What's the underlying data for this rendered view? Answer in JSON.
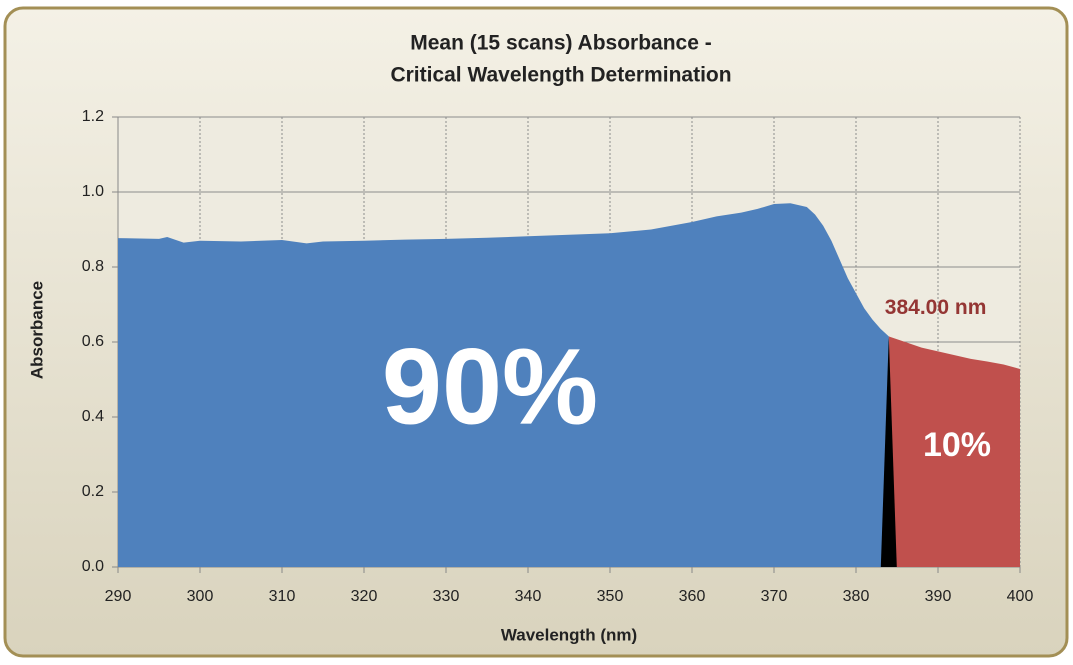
{
  "chart_data": {
    "type": "area",
    "title": [
      "Mean (15 scans) Absorbance -",
      "Critical Wavelength Determination"
    ],
    "x_label": "Wavelength (nm)",
    "y_label": "Absorbance",
    "x": [
      290,
      295,
      296,
      298,
      300,
      305,
      310,
      313,
      315,
      320,
      325,
      330,
      335,
      340,
      345,
      350,
      355,
      360,
      363,
      366,
      368,
      370,
      372,
      374,
      375,
      376,
      377,
      378,
      379,
      380,
      381,
      382,
      383,
      384,
      386,
      388,
      390,
      392,
      394,
      396,
      398,
      400
    ],
    "series": [
      {
        "color": "#4f81bd",
        "values": [
          0.877,
          0.875,
          0.88,
          0.865,
          0.87,
          0.868,
          0.872,
          0.863,
          0.868,
          0.87,
          0.873,
          0.875,
          0.878,
          0.882,
          0.886,
          0.89,
          0.9,
          0.92,
          0.935,
          0.945,
          0.955,
          0.968,
          0.97,
          0.96,
          0.94,
          0.91,
          0.87,
          0.82,
          0.77,
          0.73,
          0.69,
          0.66,
          0.635,
          0.615,
          null,
          null,
          null,
          null,
          null,
          null,
          null,
          null
        ]
      },
      {
        "color": "#c0504d",
        "values": [
          null,
          null,
          null,
          null,
          null,
          null,
          null,
          null,
          null,
          null,
          null,
          null,
          null,
          null,
          null,
          null,
          null,
          null,
          null,
          null,
          null,
          null,
          null,
          null,
          null,
          null,
          null,
          null,
          null,
          null,
          null,
          null,
          null,
          0.615,
          0.6,
          0.585,
          0.575,
          0.565,
          0.555,
          0.548,
          0.54,
          0.528
        ]
      }
    ],
    "critical_wavelength": {
      "x": 384,
      "label": "384.00 nm",
      "color": "#000000"
    },
    "annotations": [
      "90%",
      "10%"
    ],
    "xlim": [
      290,
      400
    ],
    "xticks": [
      290,
      300,
      310,
      320,
      330,
      340,
      350,
      360,
      370,
      380,
      390,
      400
    ],
    "ylim": [
      0,
      1.2
    ],
    "yticks": [
      {
        "value": 0,
        "label": "0.0"
      },
      {
        "value": 0.2,
        "label": "0.2"
      },
      {
        "value": 0.4,
        "label": "0.4"
      },
      {
        "value": 0.6,
        "label": "0.6"
      },
      {
        "value": 0.8,
        "label": "0.8"
      },
      {
        "value": 1.0,
        "label": "1.0"
      },
      {
        "value": 1.2,
        "label": "1.2"
      }
    ],
    "grid": true
  }
}
